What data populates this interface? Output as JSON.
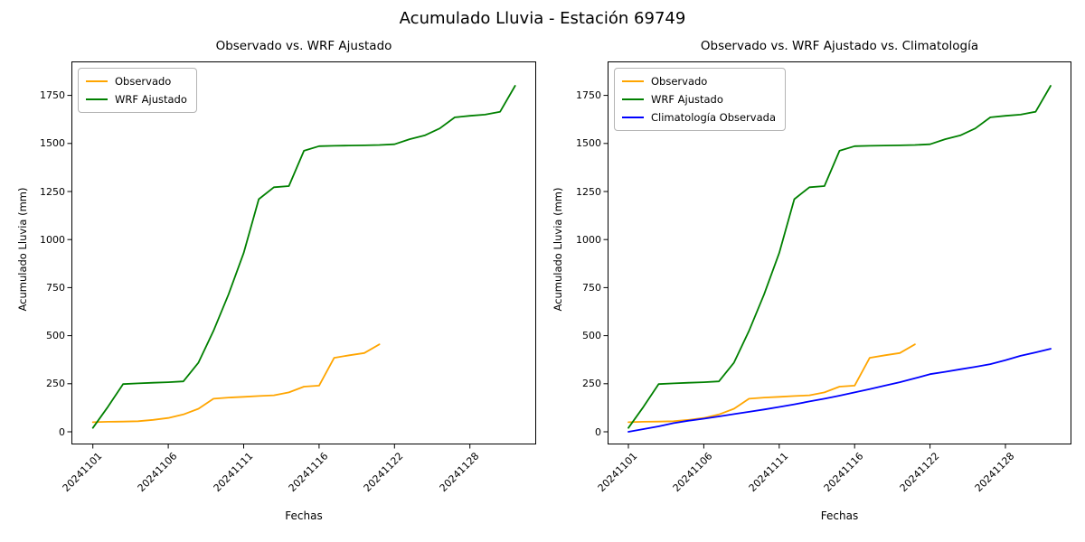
{
  "figure": {
    "suptitle": "Acumulado Lluvia - Estación 69749",
    "background": "#ffffff"
  },
  "colors": {
    "observado": "#FFA500",
    "wrf": "#008000",
    "climatologia": "#0000FF",
    "spine": "#000000",
    "legend_border": "#b4b4b4"
  },
  "chart_data": [
    {
      "type": "line",
      "title": "Observado vs. WRF Ajustado",
      "xlabel": "Fechas",
      "ylabel": "Acumulado Lluvia (mm)",
      "grid": false,
      "legend_position": "upper left",
      "ylim": [
        0,
        1800
      ],
      "ytick_values": [
        0,
        250,
        500,
        750,
        1000,
        1250,
        1500,
        1750
      ],
      "xtick_positions": [
        0,
        5,
        10,
        15,
        20,
        25
      ],
      "xtick_labels": [
        "20241101",
        "20241106",
        "20241111",
        "20241116",
        "20241122",
        "20241128"
      ],
      "series": [
        {
          "name": "Observado",
          "color_key": "observado",
          "values": [
            50,
            52,
            53,
            55,
            62,
            72,
            90,
            120,
            172,
            178,
            182,
            186,
            190,
            205,
            235,
            240,
            385,
            398,
            410,
            455
          ]
        },
        {
          "name": "WRF Ajustado",
          "color_key": "wrf",
          "values": [
            20,
            130,
            248,
            252,
            255,
            258,
            262,
            360,
            525,
            715,
            930,
            1210,
            1272,
            1278,
            1462,
            1486,
            1488,
            1489,
            1490,
            1492,
            1496,
            1522,
            1542,
            1578,
            1636,
            1644,
            1650,
            1665,
            1800
          ]
        }
      ]
    },
    {
      "type": "line",
      "title": "Observado vs. WRF Ajustado vs. Climatología",
      "xlabel": "Fechas",
      "ylabel": "Acumulado Lluvia (mm)",
      "grid": false,
      "legend_position": "upper left",
      "ylim": [
        0,
        1800
      ],
      "ytick_values": [
        0,
        250,
        500,
        750,
        1000,
        1250,
        1500,
        1750
      ],
      "xtick_positions": [
        0,
        5,
        10,
        15,
        20,
        25
      ],
      "xtick_labels": [
        "20241101",
        "20241106",
        "20241111",
        "20241116",
        "20241122",
        "20241128"
      ],
      "series": [
        {
          "name": "Observado",
          "color_key": "observado",
          "values": [
            50,
            52,
            53,
            55,
            62,
            72,
            90,
            120,
            172,
            178,
            182,
            186,
            190,
            205,
            235,
            240,
            385,
            398,
            410,
            455
          ]
        },
        {
          "name": "WRF Ajustado",
          "color_key": "wrf",
          "values": [
            20,
            130,
            248,
            252,
            255,
            258,
            262,
            360,
            525,
            715,
            930,
            1210,
            1272,
            1278,
            1462,
            1486,
            1488,
            1489,
            1490,
            1492,
            1496,
            1522,
            1542,
            1578,
            1636,
            1644,
            1650,
            1665,
            1800
          ]
        },
        {
          "name": "Climatología Observada",
          "color_key": "climatologia",
          "values": [
            0,
            14,
            28,
            45,
            58,
            68,
            80,
            92,
            104,
            116,
            129,
            143,
            158,
            172,
            188,
            205,
            222,
            240,
            258,
            278,
            300,
            312,
            325,
            338,
            352,
            372,
            395,
            413,
            432
          ]
        }
      ]
    }
  ]
}
